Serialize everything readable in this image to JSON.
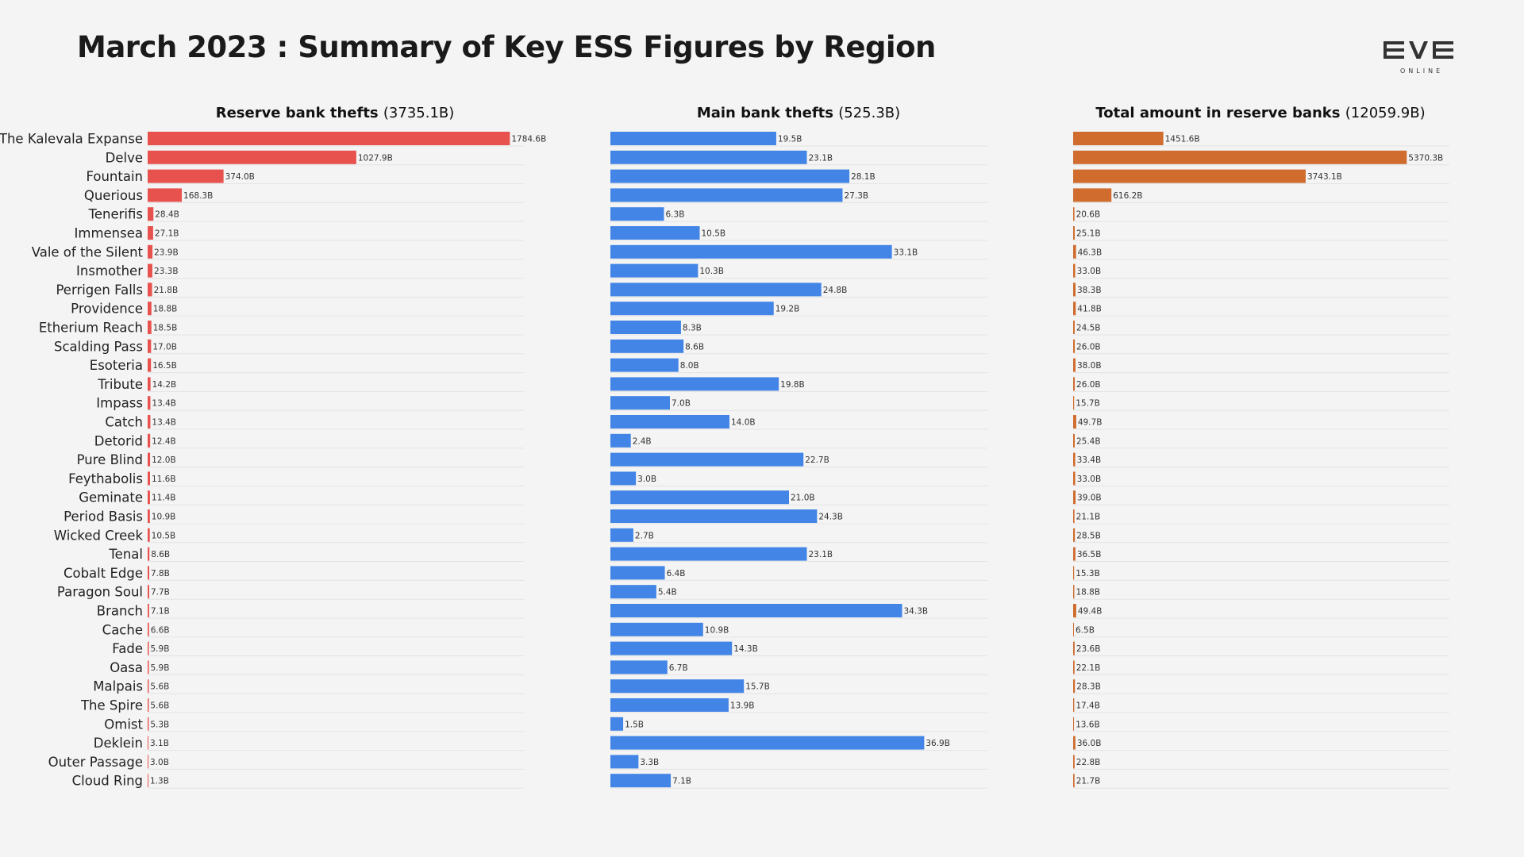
{
  "title": "March 2023 : Summary of Key ESS Figures by Region",
  "logo": {
    "name": "eve-online-logo",
    "text": "EVE",
    "subtext": "ONLINE"
  },
  "colors": {
    "reserve": "#e8524e",
    "main": "#4285e6",
    "total": "#cf6c2e",
    "background": "#f4f4f4"
  },
  "chart_data": [
    {
      "type": "bar",
      "orientation": "horizontal",
      "title": "Reserve bank thefts",
      "total_label": "(3735.1B)",
      "color": "#e8524e",
      "xlim": [
        0,
        2100
      ],
      "categories": [
        "The Kalevala Expanse",
        "Delve",
        "Fountain",
        "Querious",
        "Tenerifis",
        "Immensea",
        "Vale of the Silent",
        "Insmother",
        "Perrigen Falls",
        "Providence",
        "Etherium Reach",
        "Scalding Pass",
        "Esoteria",
        "Tribute",
        "Impass",
        "Catch",
        "Detorid",
        "Pure Blind",
        "Feythabolis",
        "Geminate",
        "Period Basis",
        "Wicked Creek",
        "Tenal",
        "Cobalt Edge",
        "Paragon Soul",
        "Branch",
        "Cache",
        "Fade",
        "Oasa",
        "Malpais",
        "The Spire",
        "Omist",
        "Deklein",
        "Outer Passage",
        "Cloud Ring"
      ],
      "values": [
        1784.6,
        1027.9,
        374.0,
        168.3,
        28.4,
        27.1,
        23.9,
        23.3,
        21.8,
        18.8,
        18.5,
        17.0,
        16.5,
        14.2,
        13.4,
        13.4,
        12.4,
        12.0,
        11.6,
        11.4,
        10.9,
        10.5,
        8.6,
        7.8,
        7.7,
        7.1,
        6.6,
        5.9,
        5.9,
        5.6,
        5.6,
        5.3,
        3.1,
        3.0,
        1.3
      ],
      "labels": [
        "1784.6B",
        "1027.9B",
        "374.0B",
        "168.3B",
        "28.4B",
        "27.1B",
        "23.9B",
        "23.3B",
        "21.8B",
        "18.8B",
        "18.5B",
        "17.0B",
        "16.5B",
        "14.2B",
        "13.4B",
        "13.4B",
        "12.4B",
        "12.0B",
        "11.6B",
        "11.4B",
        "10.9B",
        "10.5B",
        "8.6B",
        "7.8B",
        "7.7B",
        "7.1B",
        "6.6B",
        "5.9B",
        "5.9B",
        "5.6B",
        "5.6B",
        "5.3B",
        "3.1B",
        "3.0B",
        "1.3B"
      ]
    },
    {
      "type": "bar",
      "orientation": "horizontal",
      "title": "Main bank thefts",
      "total_label": "(525.3B)",
      "color": "#4285e6",
      "xlim": [
        0,
        42
      ],
      "categories": [
        "The Kalevala Expanse",
        "Delve",
        "Fountain",
        "Querious",
        "Tenerifis",
        "Immensea",
        "Vale of the Silent",
        "Insmother",
        "Perrigen Falls",
        "Providence",
        "Etherium Reach",
        "Scalding Pass",
        "Esoteria",
        "Tribute",
        "Impass",
        "Catch",
        "Detorid",
        "Pure Blind",
        "Feythabolis",
        "Geminate",
        "Period Basis",
        "Wicked Creek",
        "Tenal",
        "Cobalt Edge",
        "Paragon Soul",
        "Branch",
        "Cache",
        "Fade",
        "Oasa",
        "Malpais",
        "The Spire",
        "Omist",
        "Deklein",
        "Outer Passage",
        "Cloud Ring"
      ],
      "values": [
        19.5,
        23.1,
        28.1,
        27.3,
        6.3,
        10.5,
        33.1,
        10.3,
        24.8,
        19.2,
        8.3,
        8.6,
        8.0,
        19.8,
        7.0,
        14.0,
        2.4,
        22.7,
        3.0,
        21.0,
        24.3,
        2.7,
        23.1,
        6.4,
        5.4,
        34.3,
        10.9,
        14.3,
        6.7,
        15.7,
        13.9,
        1.5,
        36.9,
        3.3,
        7.1
      ],
      "labels": [
        "19.5B",
        "23.1B",
        "28.1B",
        "27.3B",
        "6.3B",
        "10.5B",
        "33.1B",
        "10.3B",
        "24.8B",
        "19.2B",
        "8.3B",
        "8.6B",
        "8.0B",
        "19.8B",
        "7.0B",
        "14.0B",
        "2.4B",
        "22.7B",
        "3.0B",
        "21.0B",
        "24.3B",
        "2.7B",
        "23.1B",
        "6.4B",
        "5.4B",
        "34.3B",
        "10.9B",
        "14.3B",
        "6.7B",
        "15.7B",
        "13.9B",
        "1.5B",
        "36.9B",
        "3.3B",
        "7.1B"
      ]
    },
    {
      "type": "bar",
      "orientation": "horizontal",
      "title": "Total amount in reserve banks",
      "total_label": "(12059.9B)",
      "color": "#cf6c2e",
      "xlim": [
        0,
        5750
      ],
      "categories": [
        "The Kalevala Expanse",
        "Delve",
        "Fountain",
        "Querious",
        "Tenerifis",
        "Immensea",
        "Vale of the Silent",
        "Insmother",
        "Perrigen Falls",
        "Providence",
        "Etherium Reach",
        "Scalding Pass",
        "Esoteria",
        "Tribute",
        "Impass",
        "Catch",
        "Detorid",
        "Pure Blind",
        "Feythabolis",
        "Geminate",
        "Period Basis",
        "Wicked Creek",
        "Tenal",
        "Cobalt Edge",
        "Paragon Soul",
        "Branch",
        "Cache",
        "Fade",
        "Oasa",
        "Malpais",
        "The Spire",
        "Omist",
        "Deklein",
        "Outer Passage",
        "Cloud Ring"
      ],
      "values": [
        1451.6,
        5370.3,
        3743.1,
        616.2,
        20.6,
        25.1,
        46.3,
        33.0,
        38.3,
        41.8,
        24.5,
        26.0,
        38.0,
        26.0,
        15.7,
        49.7,
        25.4,
        33.4,
        33.0,
        39.0,
        21.1,
        28.5,
        36.5,
        15.3,
        18.8,
        49.4,
        6.5,
        23.6,
        22.1,
        28.3,
        17.4,
        13.6,
        36.0,
        22.8,
        21.7
      ],
      "labels": [
        "1451.6B",
        "5370.3B",
        "3743.1B",
        "616.2B",
        "20.6B",
        "25.1B",
        "46.3B",
        "33.0B",
        "38.3B",
        "41.8B",
        "24.5B",
        "26.0B",
        "38.0B",
        "26.0B",
        "15.7B",
        "49.7B",
        "25.4B",
        "33.4B",
        "33.0B",
        "39.0B",
        "21.1B",
        "28.5B",
        "36.5B",
        "15.3B",
        "18.8B",
        "49.4B",
        "6.5B",
        "23.6B",
        "22.1B",
        "28.3B",
        "17.4B",
        "13.6B",
        "36.0B",
        "22.8B",
        "21.7B"
      ]
    }
  ]
}
